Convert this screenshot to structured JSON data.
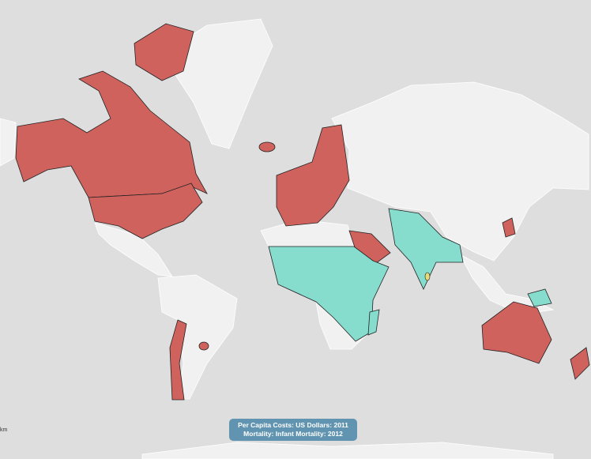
{
  "legend": {
    "lines": [
      "Per Capita Costs: US Dollars: 2011",
      "Mortality: Infant Mortality: 2012"
    ]
  },
  "scale": {
    "unit": "km"
  }
}
